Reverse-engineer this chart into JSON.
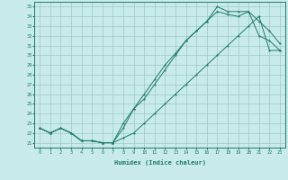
{
  "xlabel": "Humidex (Indice chaleur)",
  "xlim": [
    -0.5,
    23.5
  ],
  "ylim": [
    20.5,
    35.5
  ],
  "xticks": [
    0,
    1,
    2,
    3,
    4,
    5,
    6,
    7,
    8,
    9,
    10,
    11,
    12,
    13,
    14,
    15,
    16,
    17,
    18,
    19,
    20,
    21,
    22,
    23
  ],
  "yticks": [
    21,
    22,
    23,
    24,
    25,
    26,
    27,
    28,
    29,
    30,
    31,
    32,
    33,
    34,
    35
  ],
  "line_color": "#1e7a6a",
  "bg_color": "#c8eaea",
  "grid_color": "#9ec8c8",
  "line1_y": [
    22.5,
    22.0,
    22.5,
    22.0,
    21.2,
    21.2,
    21.0,
    21.0,
    22.5,
    24.5,
    26.0,
    27.5,
    29.0,
    30.2,
    31.5,
    32.5,
    33.5,
    35.0,
    34.5,
    34.5,
    34.5,
    33.5,
    32.5,
    31.2
  ],
  "line2_y": [
    22.5,
    22.0,
    22.5,
    22.0,
    21.2,
    21.2,
    21.0,
    21.0,
    23.0,
    24.5,
    25.5,
    27.0,
    28.5,
    30.0,
    31.5,
    32.5,
    33.5,
    34.5,
    34.2,
    34.0,
    34.5,
    32.0,
    31.5,
    30.5
  ],
  "line3_y": [
    22.5,
    22.0,
    22.5,
    22.0,
    21.2,
    21.2,
    21.0,
    21.0,
    21.5,
    22.0,
    23.0,
    24.0,
    25.0,
    26.0,
    27.0,
    28.0,
    29.0,
    30.0,
    31.0,
    32.0,
    33.0,
    34.0,
    30.5,
    30.5
  ]
}
